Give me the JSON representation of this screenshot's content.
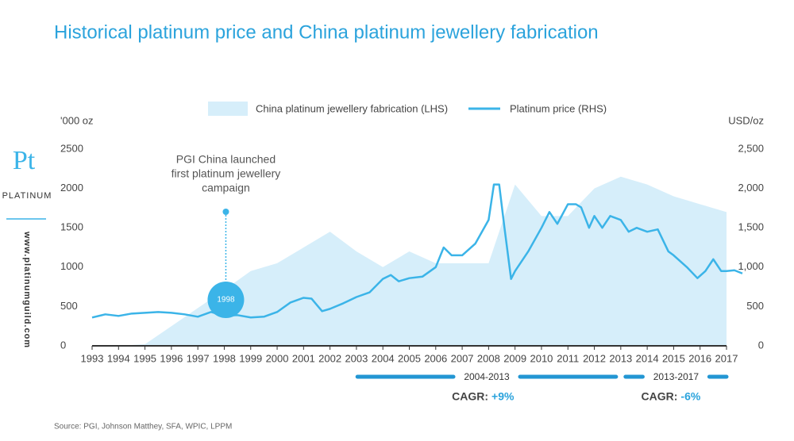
{
  "chart_data": {
    "type": "combo",
    "title": "Historical platinum price and China platinum jewellery fabrication",
    "ylabel": "'000 oz",
    "y2label": "USD/oz",
    "xlim": [
      1993,
      2017
    ],
    "xticks": [
      1993,
      1994,
      1995,
      1996,
      1997,
      1998,
      1999,
      2000,
      2001,
      2002,
      2003,
      2004,
      2005,
      2006,
      2007,
      2008,
      2009,
      2010,
      2011,
      2012,
      2013,
      2014,
      2015,
      2016,
      2017
    ],
    "ylim": [
      0,
      2500
    ],
    "yticks": [
      0,
      500,
      1000,
      1500,
      2000,
      2500
    ],
    "y2lim": [
      0,
      2500
    ],
    "y2ticks": [
      0,
      500,
      {
        "value": 1000,
        "label": "1,000"
      },
      {
        "value": 1500,
        "label": "1,500"
      },
      {
        "value": 2000,
        "label": "2,000"
      },
      {
        "value": 2500,
        "label": "2,500"
      }
    ],
    "legend": "top",
    "series": [
      {
        "name": "China platinum jewellery fabrication (LHS)",
        "type": "area",
        "color": "#d6eefa",
        "x": [
          1993,
          1994,
          1995,
          1996,
          1997,
          1998,
          1999,
          2000,
          2001,
          2002,
          2003,
          2004,
          2005,
          2006,
          2007,
          2008,
          2009,
          2010,
          2011,
          2012,
          2013,
          2014,
          2015,
          2016,
          2017
        ],
        "values": [
          0,
          0,
          20,
          250,
          480,
          710,
          950,
          1050,
          1250,
          1450,
          1200,
          1000,
          1200,
          1050,
          1050,
          1050,
          2050,
          1650,
          1650,
          2000,
          2150,
          2050,
          1900,
          1800,
          1700
        ]
      },
      {
        "name": "Platinum price (RHS)",
        "type": "line",
        "axis": "y2",
        "color": "#3bb4e8",
        "x": [
          1993.0,
          1993.5,
          1994.0,
          1994.5,
          1995.0,
          1995.5,
          1996.0,
          1996.5,
          1997.0,
          1997.5,
          1998.0,
          1998.5,
          1999.0,
          1999.5,
          2000.0,
          2000.5,
          2001.0,
          2001.3,
          2001.7,
          2002.0,
          2002.5,
          2003.0,
          2003.5,
          2004.0,
          2004.3,
          2004.6,
          2005.0,
          2005.5,
          2006.0,
          2006.3,
          2006.6,
          2007.0,
          2007.5,
          2008.0,
          2008.2,
          2008.4,
          2008.6,
          2008.85,
          2009.0,
          2009.5,
          2010.0,
          2010.3,
          2010.6,
          2011.0,
          2011.3,
          2011.5,
          2011.8,
          2012.0,
          2012.3,
          2012.6,
          2013.0,
          2013.3,
          2013.6,
          2014.0,
          2014.4,
          2014.8,
          2015.0,
          2015.5,
          2015.9,
          2016.2,
          2016.5,
          2016.8,
          2017.0,
          2017.3,
          2017.6
        ],
        "values": [
          360,
          400,
          380,
          410,
          420,
          430,
          420,
          400,
          370,
          430,
          380,
          390,
          360,
          370,
          430,
          550,
          610,
          600,
          440,
          470,
          540,
          620,
          680,
          850,
          900,
          820,
          860,
          880,
          1000,
          1250,
          1150,
          1150,
          1300,
          1600,
          2050,
          2050,
          1500,
          850,
          950,
          1200,
          1500,
          1700,
          1550,
          1800,
          1800,
          1760,
          1500,
          1650,
          1500,
          1650,
          1600,
          1450,
          1500,
          1450,
          1480,
          1200,
          1150,
          1000,
          860,
          950,
          1100,
          950,
          950,
          960,
          920
        ]
      }
    ],
    "annotations": [
      {
        "lines": [
          "PGI China launched",
          "first platinum jewellery",
          "campaign"
        ],
        "marker": "1998"
      }
    ],
    "periods": [
      {
        "label": "2004-2013",
        "cagr_label": "CAGR:",
        "cagr": "+9%"
      },
      {
        "label": "2013-2017",
        "cagr_label": "CAGR:",
        "cagr": "-6%"
      }
    ],
    "source": "Source: PGI, Johnson Matthey, SFA, WPIC, LPPM"
  },
  "logo": {
    "symbol": "Pt",
    "name": "PLATINUM",
    "url": "www.platinumguild.com"
  }
}
